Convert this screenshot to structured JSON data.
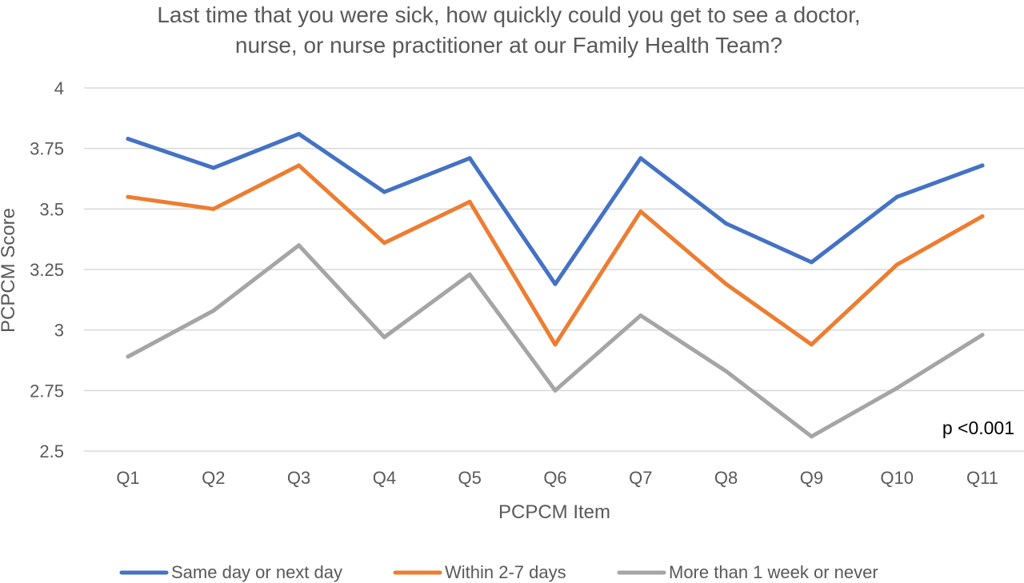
{
  "chart_data": {
    "type": "line",
    "title_lines": [
      "Last time that you were sick, how quickly could you get to see a doctor,",
      "nurse, or nurse practitioner at our Family Health Team?"
    ],
    "xlabel": "PCPCM Item",
    "ylabel": "PCPCM Score",
    "categories": [
      "Q1",
      "Q2",
      "Q3",
      "Q4",
      "Q5",
      "Q6",
      "Q7",
      "Q8",
      "Q9",
      "Q10",
      "Q11"
    ],
    "ylim": [
      2.5,
      4
    ],
    "yticks": [
      {
        "value": 4,
        "label": "4"
      },
      {
        "value": 3.75,
        "label": "3.75"
      },
      {
        "value": 3.5,
        "label": "3.5"
      },
      {
        "value": 3.25,
        "label": "3.25"
      },
      {
        "value": 3,
        "label": "3"
      },
      {
        "value": 2.75,
        "label": "2.75"
      },
      {
        "value": 2.5,
        "label": "2.5"
      }
    ],
    "grid": true,
    "legend_position": "bottom",
    "series": [
      {
        "name": "Same day or next day",
        "color": "#4472C4",
        "values": [
          3.79,
          3.67,
          3.81,
          3.57,
          3.71,
          3.19,
          3.71,
          3.44,
          3.28,
          3.55,
          3.68
        ]
      },
      {
        "name": "Within 2-7 days",
        "color": "#ED7D31",
        "values": [
          3.55,
          3.5,
          3.68,
          3.36,
          3.53,
          2.94,
          3.49,
          3.19,
          2.94,
          3.27,
          3.47
        ]
      },
      {
        "name": "More than 1 week or never",
        "color": "#A5A5A5",
        "values": [
          2.89,
          3.08,
          3.35,
          2.97,
          3.23,
          2.75,
          3.06,
          2.83,
          2.56,
          2.76,
          2.98
        ]
      }
    ],
    "annotation": "p <0.001"
  }
}
